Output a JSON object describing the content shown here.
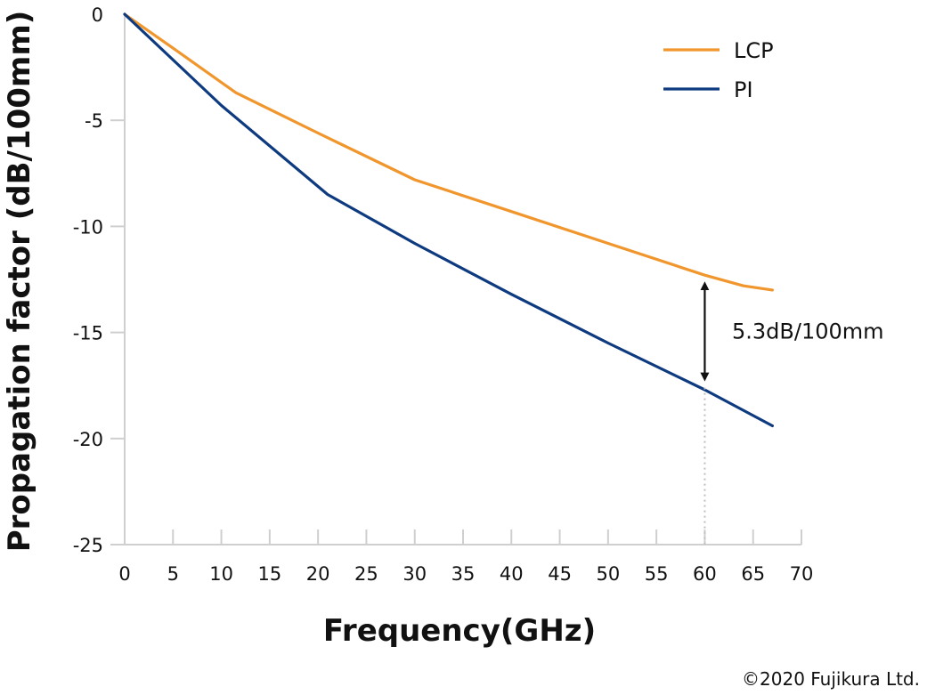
{
  "chart_data": {
    "type": "line",
    "xlabel": "Frequency(GHz)",
    "ylabel": "Propagation factor (dB/100mm)",
    "xlim": [
      0,
      70
    ],
    "ylim": [
      -25,
      0
    ],
    "xticks": [
      0,
      5,
      10,
      15,
      20,
      25,
      30,
      35,
      40,
      45,
      50,
      55,
      60,
      65,
      70
    ],
    "yticks": [
      0,
      -5,
      -10,
      -15,
      -20,
      -25
    ],
    "grid": false,
    "legend_position": "top-right",
    "series": [
      {
        "name": "LCP",
        "color": "#F0962D",
        "points": [
          [
            0,
            0
          ],
          [
            5,
            -1.6
          ],
          [
            11.5,
            -3.7
          ],
          [
            20,
            -5.6
          ],
          [
            30,
            -7.8
          ],
          [
            40,
            -9.3
          ],
          [
            50,
            -10.8
          ],
          [
            60,
            -12.3
          ],
          [
            64,
            -12.8
          ],
          [
            67,
            -13.0
          ]
        ]
      },
      {
        "name": "PI",
        "color": "#0E3A80",
        "points": [
          [
            0,
            0
          ],
          [
            10,
            -4.3
          ],
          [
            21,
            -8.5
          ],
          [
            30,
            -10.8
          ],
          [
            40,
            -13.2
          ],
          [
            50,
            -15.5
          ],
          [
            60,
            -17.7
          ],
          [
            67,
            -19.4
          ]
        ]
      }
    ],
    "annotations": [
      {
        "text": "5.3dB/100mm",
        "x": 60,
        "y_from": -12.3,
        "y_to": -17.6
      }
    ],
    "reference_line_x": 60
  },
  "copyright": "©2020 Fujikura Ltd."
}
